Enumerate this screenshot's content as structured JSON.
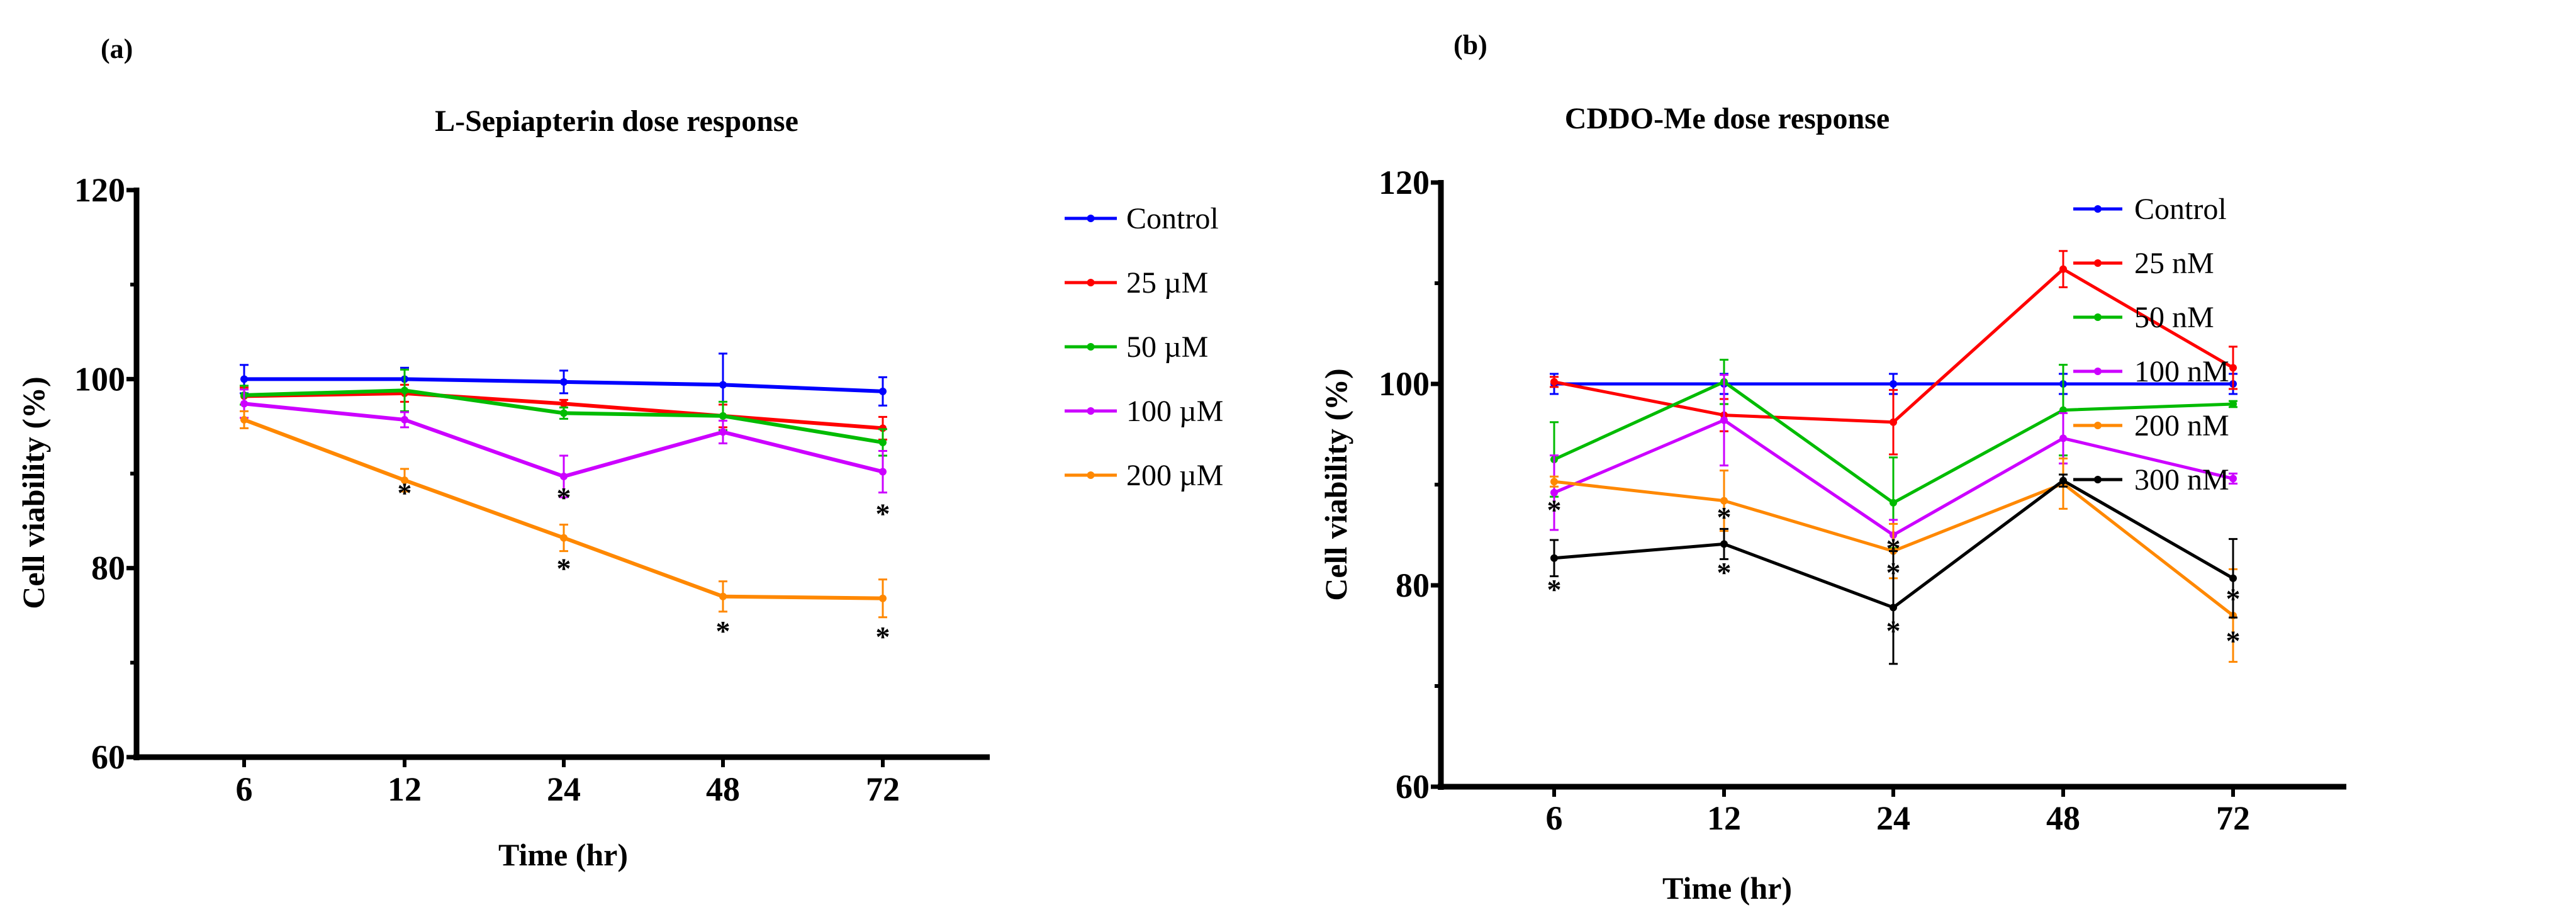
{
  "chart_data": [
    {
      "panel": "(a)",
      "type": "line",
      "title": "L-Sepiapterin dose response",
      "xlabel": "Time (hr)",
      "ylabel": "Cell viability  (%)",
      "categories": [
        "6",
        "12",
        "24",
        "48",
        "72"
      ],
      "ylim": [
        60,
        120
      ],
      "yticks": [
        "60",
        "80",
        "100",
        "120"
      ],
      "ytick_values": [
        60,
        80,
        100,
        120
      ],
      "minor_yticks": [
        70,
        90,
        110
      ],
      "legend_position": "right",
      "series": [
        {
          "name": "Control",
          "color": "#0000ff",
          "values": [
            100.0,
            100.0,
            99.7,
            99.4,
            98.7
          ],
          "errors": [
            1.5,
            1.2,
            1.2,
            3.3,
            1.5
          ]
        },
        {
          "name": "25 µM",
          "color": "#ff0000",
          "values": [
            98.2,
            98.5,
            97.4,
            96.1,
            94.8
          ],
          "errors": [
            0.9,
            0.9,
            0.4,
            1.2,
            1.2
          ]
        },
        {
          "name": "50 µM",
          "color": "#00bb00",
          "values": [
            98.3,
            98.8,
            96.4,
            96.1,
            93.3
          ],
          "errors": [
            1.0,
            2.2,
            0.6,
            1.5,
            1.4
          ]
        },
        {
          "name": "100 µM",
          "color": "#cc00ff",
          "values": [
            97.4,
            95.7,
            89.7,
            94.4,
            90.2
          ],
          "errors": [
            1.5,
            0.8,
            2.2,
            1.2,
            2.2
          ]
        },
        {
          "name": "200 µM",
          "color": "#ff8800",
          "values": [
            95.7,
            89.3,
            83.2,
            77.0,
            76.8
          ],
          "errors": [
            0.9,
            1.2,
            1.4,
            1.6,
            2.0
          ]
        }
      ],
      "annotations": [
        {
          "text": "*",
          "x": "12",
          "y": 88.4
        },
        {
          "text": "*",
          "x": "24",
          "y": 87.9
        },
        {
          "text": "*",
          "x": "24",
          "y": 80.4
        },
        {
          "text": "*",
          "x": "48",
          "y": 73.8
        },
        {
          "text": "*",
          "x": "72",
          "y": 86.2
        },
        {
          "text": "*",
          "x": "72",
          "y": 73.2
        }
      ]
    },
    {
      "panel": "(b)",
      "type": "line",
      "title": "CDDO-Me dose response",
      "xlabel": "Time (hr)",
      "ylabel": "Cell viability  (%)",
      "categories": [
        "6",
        "12",
        "24",
        "48",
        "72"
      ],
      "ylim": [
        60,
        120
      ],
      "yticks": [
        "60",
        "80",
        "100",
        "120"
      ],
      "ytick_values": [
        60,
        80,
        100,
        120
      ],
      "minor_yticks": [
        70,
        90,
        110
      ],
      "legend_position": "right",
      "series": [
        {
          "name": "Control",
          "color": "#0000ff",
          "values": [
            100.0,
            100.0,
            100.0,
            100.0,
            100.0
          ],
          "errors": [
            1.0,
            1.0,
            1.0,
            1.0,
            1.0
          ]
        },
        {
          "name": "25 nM",
          "color": "#ff0000",
          "values": [
            100.2,
            96.9,
            96.2,
            111.4,
            101.6
          ],
          "errors": [
            0.5,
            1.6,
            3.2,
            1.8,
            2.1
          ]
        },
        {
          "name": "50 nM",
          "color": "#00bb00",
          "values": [
            92.5,
            100.2,
            88.2,
            97.4,
            98.0
          ],
          "errors": [
            3.7,
            2.2,
            4.5,
            4.5,
            0.3
          ]
        },
        {
          "name": "100 nM",
          "color": "#cc00ff",
          "values": [
            89.2,
            96.4,
            85.0,
            94.6,
            90.6
          ],
          "errors": [
            3.7,
            4.5,
            1.5,
            2.5,
            0.5
          ]
        },
        {
          "name": "200 nM",
          "color": "#ff8800",
          "values": [
            90.3,
            88.4,
            83.4,
            90.1,
            77.0
          ],
          "errors": [
            0.5,
            3.0,
            2.7,
            2.5,
            4.6
          ]
        },
        {
          "name": "300 nM",
          "color": "#000000",
          "values": [
            82.7,
            84.1,
            77.8,
            90.4,
            80.7
          ],
          "errors": [
            1.8,
            1.5,
            5.6,
            0.6,
            3.9
          ]
        }
      ],
      "annotations": [
        {
          "text": "*",
          "x": "6",
          "y": 87.9
        },
        {
          "text": "*",
          "x": "6",
          "y": 80.0
        },
        {
          "text": "*",
          "x": "12",
          "y": 87.2
        },
        {
          "text": "*",
          "x": "12",
          "y": 81.7
        },
        {
          "text": "*",
          "x": "24",
          "y": 84.1
        },
        {
          "text": "*",
          "x": "24",
          "y": 81.7
        },
        {
          "text": "*",
          "x": "24",
          "y": 75.9
        },
        {
          "text": "*",
          "x": "72",
          "y": 79.1
        },
        {
          "text": "*",
          "x": "72",
          "y": 74.9
        }
      ]
    }
  ]
}
